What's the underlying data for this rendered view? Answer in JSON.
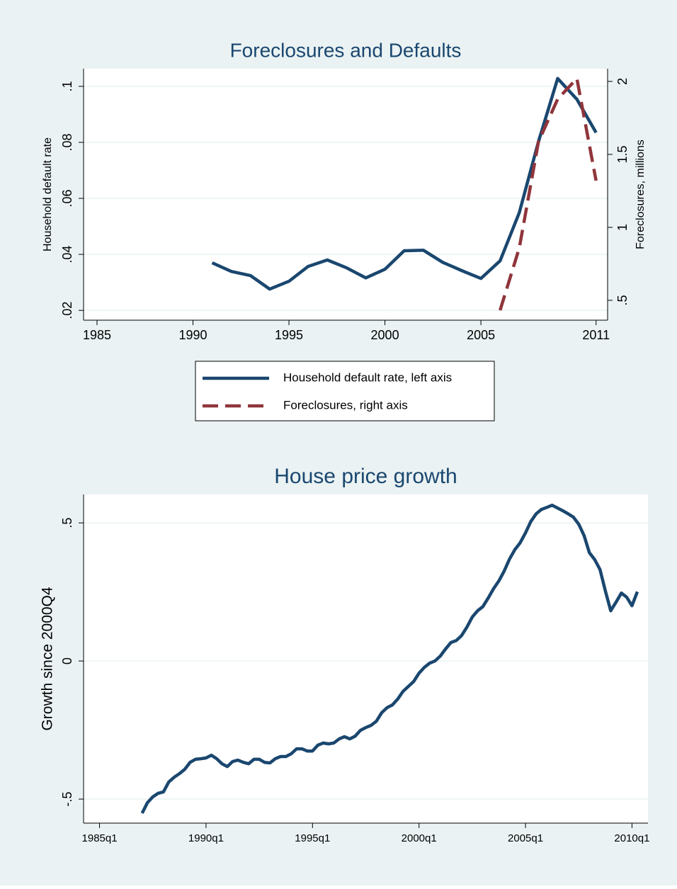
{
  "chart_data": [
    {
      "type": "line",
      "title": "Foreclosures and Defaults",
      "ylabel": "Household default rate",
      "y2label": "Foreclosures, millions",
      "x": [
        1991,
        1992,
        1993,
        1994,
        1995,
        1996,
        1997,
        1998,
        1999,
        2000,
        2001,
        2002,
        2003,
        2004,
        2005,
        2006,
        2007,
        2008,
        2009,
        2010,
        2011
      ],
      "series": [
        {
          "name": "Household default rate, left axis",
          "color": "#1a476f",
          "dash": false,
          "values": [
            0.037,
            0.0339,
            0.0324,
            0.0276,
            0.0304,
            0.0357,
            0.038,
            0.0352,
            0.0316,
            0.0347,
            0.0413,
            0.0415,
            0.0372,
            0.0342,
            0.0314,
            0.0377,
            0.0549,
            0.0803,
            0.1028,
            0.0954,
            0.0835
          ]
        },
        {
          "name": "Foreclosures, right axis",
          "color": "#90353b",
          "dash": true,
          "axis": "y2",
          "values": [
            null,
            null,
            null,
            null,
            null,
            null,
            null,
            null,
            null,
            null,
            null,
            null,
            null,
            null,
            null,
            0.432,
            0.859,
            1.587,
            1.879,
            2.02,
            1.32
          ]
        }
      ],
      "xlim": [
        1984.3,
        2011.6
      ],
      "xticks": [
        1985,
        1990,
        1995,
        2000,
        2005,
        2011
      ],
      "ylim": [
        0.0165,
        0.1063
      ],
      "yticks": [
        {
          "value": 0.02,
          "label": ".02"
        },
        {
          "value": 0.04,
          "label": ".04"
        },
        {
          "value": 0.06,
          "label": ".06"
        },
        {
          "value": 0.08,
          "label": ".08"
        },
        {
          "value": 0.1,
          "label": ".1"
        }
      ],
      "y2lim": [
        0.364,
        2.087
      ],
      "y2ticks": [
        {
          "value": 0.5,
          "label": ".5"
        },
        1,
        1.5,
        2
      ],
      "grid": true,
      "legend": "bottom"
    },
    {
      "type": "line",
      "title": "House price growth",
      "ylabel": "Growth since 2000Q4",
      "x": [
        "1987q1",
        "1987q2",
        "1987q3",
        "1987q4",
        "1988q1",
        "1988q2",
        "1988q3",
        "1988q4",
        "1989q1",
        "1989q2",
        "1989q3",
        "1989q4",
        "1990q1",
        "1990q2",
        "1990q3",
        "1990q4",
        "1991q1",
        "1991q2",
        "1991q3",
        "1991q4",
        "1992q1",
        "1992q2",
        "1992q3",
        "1992q4",
        "1993q1",
        "1993q2",
        "1993q3",
        "1993q4",
        "1994q1",
        "1994q2",
        "1994q3",
        "1994q4",
        "1995q1",
        "1995q2",
        "1995q3",
        "1995q4",
        "1996q1",
        "1996q2",
        "1996q3",
        "1996q4",
        "1997q1",
        "1997q2",
        "1997q3",
        "1997q4",
        "1998q1",
        "1998q2",
        "1998q3",
        "1998q4",
        "1999q1",
        "1999q2",
        "1999q3",
        "1999q4",
        "2000q1",
        "2000q2",
        "2000q3",
        "2000q4",
        "2001q1",
        "2001q2",
        "2001q3",
        "2001q4",
        "2002q1",
        "2002q2",
        "2002q3",
        "2002q4",
        "2003q1",
        "2003q2",
        "2003q3",
        "2003q4",
        "2004q1",
        "2004q2",
        "2004q3",
        "2004q4",
        "2005q1",
        "2005q2",
        "2005q3",
        "2005q4",
        "2006q1",
        "2006q2",
        "2006q3",
        "2006q4",
        "2007q1",
        "2007q2",
        "2007q3",
        "2007q4",
        "2008q1",
        "2008q2",
        "2008q3",
        "2008q4",
        "2009q1",
        "2009q2",
        "2009q3",
        "2009q4",
        "2010q1",
        "2010q2"
      ],
      "series": [
        {
          "name": "House price growth",
          "color": "#1a476f",
          "dash": false,
          "values": [
            -0.551,
            -0.513,
            -0.492,
            -0.479,
            -0.474,
            -0.438,
            -0.421,
            -0.408,
            -0.392,
            -0.367,
            -0.356,
            -0.354,
            -0.351,
            -0.341,
            -0.354,
            -0.372,
            -0.382,
            -0.364,
            -0.359,
            -0.367,
            -0.372,
            -0.356,
            -0.356,
            -0.367,
            -0.369,
            -0.354,
            -0.346,
            -0.346,
            -0.336,
            -0.318,
            -0.318,
            -0.326,
            -0.326,
            -0.305,
            -0.297,
            -0.3,
            -0.297,
            -0.282,
            -0.274,
            -0.282,
            -0.272,
            -0.251,
            -0.241,
            -0.233,
            -0.218,
            -0.187,
            -0.169,
            -0.159,
            -0.138,
            -0.11,
            -0.092,
            -0.074,
            -0.044,
            -0.023,
            -0.008,
            0,
            0.018,
            0.044,
            0.067,
            0.074,
            0.092,
            0.123,
            0.159,
            0.182,
            0.197,
            0.228,
            0.262,
            0.29,
            0.326,
            0.369,
            0.403,
            0.428,
            0.464,
            0.505,
            0.533,
            0.549,
            0.556,
            0.564,
            0.554,
            0.544,
            0.533,
            0.521,
            0.495,
            0.454,
            0.392,
            0.367,
            0.331,
            0.254,
            0.182,
            0.213,
            0.246,
            0.231,
            0.2,
            0.251
          ]
        }
      ],
      "xlim": [
        "1984q2",
        "2010q4"
      ],
      "xticks": [
        "1985q1",
        "1990q1",
        "1995q1",
        "2000q1",
        "2005q1",
        "2010q1"
      ],
      "ylim": [
        -0.587,
        0.603
      ],
      "yticks": [
        {
          "value": -0.5,
          "label": "-.5"
        },
        0,
        {
          "value": 0.5,
          "label": ".5"
        }
      ],
      "grid": true
    }
  ]
}
